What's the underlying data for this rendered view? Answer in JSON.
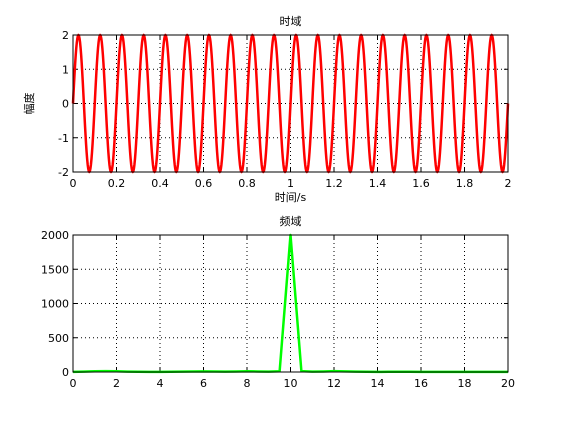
{
  "figure": {
    "background": "#ffffff",
    "axes_color": "#000000",
    "grid_color": "#000000"
  },
  "chart_data": [
    {
      "type": "line",
      "title": "时域",
      "xlabel": "时间/s",
      "ylabel": "幅度",
      "xlim": [
        0,
        2
      ],
      "ylim": [
        -2,
        2
      ],
      "x_ticks": [
        "0",
        "0.2",
        "0.4",
        "0.6",
        "0.8",
        "1",
        "1.2",
        "1.4",
        "1.6",
        "1.8",
        "2"
      ],
      "y_ticks": [
        "-2",
        "-1",
        "0",
        "1",
        "2"
      ],
      "grid": true,
      "series": [
        {
          "function": "2*sin(2*pi*10*t)",
          "amplitude": 2,
          "frequency_hz": 10,
          "t_start": 0,
          "t_end": 2,
          "samples": 800,
          "color": "#ff0000"
        }
      ]
    },
    {
      "type": "line",
      "title": "频域",
      "xlabel": "",
      "ylabel": "",
      "xlim": [
        0,
        20
      ],
      "ylim": [
        0,
        2000
      ],
      "x_ticks": [
        "0",
        "2",
        "4",
        "6",
        "8",
        "10",
        "12",
        "14",
        "16",
        "18",
        "20"
      ],
      "y_ticks": [
        "0",
        "500",
        "1000",
        "1500",
        "2000"
      ],
      "grid": true,
      "series": [
        {
          "color": "#00ff00",
          "x": [
            0,
            0.5,
            1,
            1.5,
            2,
            2.5,
            3,
            3.5,
            4,
            4.5,
            5,
            5.5,
            6,
            6.5,
            7,
            7.5,
            8,
            8.5,
            9,
            9.5,
            10,
            10.5,
            11,
            11.5,
            12,
            12.5,
            13,
            13.5,
            14,
            14.5,
            15,
            15.5,
            16,
            16.5,
            17,
            17.5,
            18,
            18.5,
            19,
            19.5,
            20
          ],
          "y": [
            2,
            6,
            10,
            12,
            10,
            6,
            3,
            2,
            2,
            3,
            5,
            7,
            9,
            7,
            5,
            8,
            10,
            8,
            5,
            10,
            2000,
            12,
            6,
            8,
            12,
            9,
            5,
            3,
            2,
            3,
            4,
            3,
            2,
            2,
            2,
            2,
            2,
            2,
            2,
            2,
            2
          ]
        }
      ]
    }
  ]
}
